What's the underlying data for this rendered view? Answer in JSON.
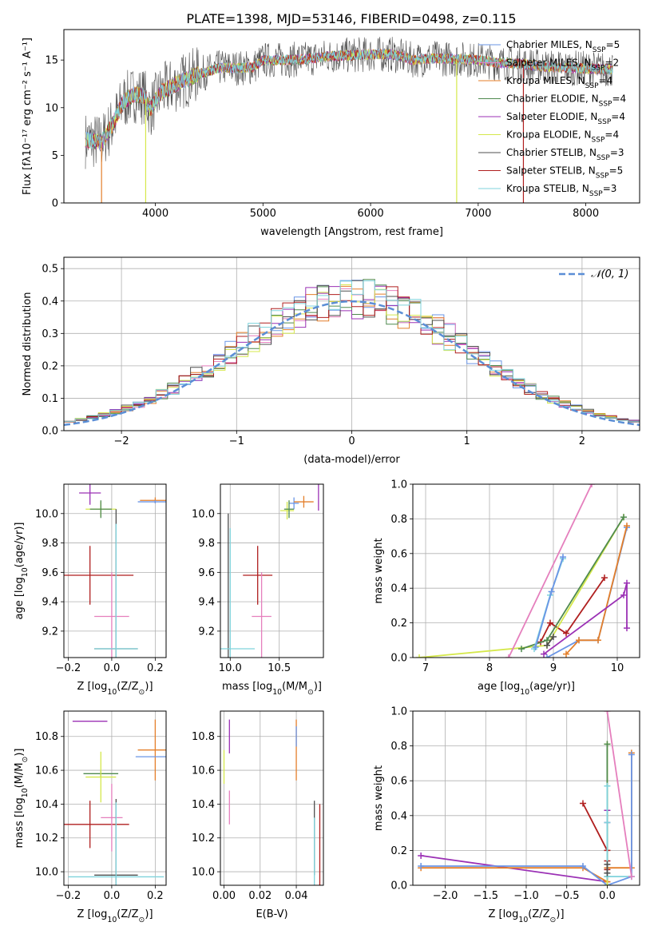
{
  "page_title": "PLATE=1398, MJD=53146, FIBERID=0498, z=0.115",
  "chart_data": [
    {
      "id": "spectrum",
      "type": "line",
      "xlabel": "wavelength [Angstrom, rest frame]",
      "ylabel": "Flux [fλ10⁻¹⁷ erg cm⁻² s⁻¹ A⁻¹]",
      "xlim": [
        3150,
        8500
      ],
      "ylim": [
        0,
        18.2
      ],
      "xticks": [
        4000,
        5000,
        6000,
        7000,
        8000
      ],
      "yticks": [
        0,
        5,
        10,
        15
      ],
      "grid": false,
      "legend": "top-right",
      "continuum_shape": {
        "x": [
          3350,
          3500,
          3600,
          3700,
          3800,
          3900,
          3950,
          4050,
          4200,
          4400,
          4600,
          4800,
          4900,
          5000,
          5200,
          5400,
          5600,
          5800,
          6000,
          6200,
          6400,
          6600,
          6800,
          7000,
          7200,
          7400,
          7600,
          7800,
          8000,
          8250
        ],
        "y": [
          6.6,
          6.4,
          8.2,
          10.6,
          11.4,
          11.2,
          9.8,
          11.6,
          12.5,
          13.5,
          14.2,
          14.2,
          14.2,
          15.0,
          15.0,
          15.1,
          15.4,
          15.5,
          15.6,
          15.6,
          15.0,
          15.2,
          15.1,
          15.0,
          14.7,
          14.6,
          14.3,
          14.2,
          14.1,
          14.0
        ]
      },
      "series": [
        {
          "name": "Chabrier MILES, N_SSP=5",
          "name_parts": [
            "Chabrier MILES, N",
            "SSP",
            "=5"
          ],
          "color": "#6a95e6"
        },
        {
          "name": "Salpeter MILES, N_SSP=2",
          "name_parts": [
            "Salpeter MILES, N",
            "SSP",
            "=2"
          ],
          "color": "#e57fbd"
        },
        {
          "name": "Kroupa MILES, N_SSP=4",
          "name_parts": [
            "Kroupa MILES, N",
            "SSP",
            "=4"
          ],
          "color": "#e47f2a"
        },
        {
          "name": "Chabrier ELODIE, N_SSP=4",
          "name_parts": [
            "Chabrier ELODIE, N",
            "SSP",
            "=4"
          ],
          "color": "#4f8a4f"
        },
        {
          "name": "Salpeter ELODIE, N_SSP=4",
          "name_parts": [
            "Salpeter ELODIE, N",
            "SSP",
            "=4"
          ],
          "color": "#9b31b5"
        },
        {
          "name": "Kroupa ELODIE, N_SSP=4",
          "name_parts": [
            "Kroupa ELODIE, N",
            "SSP",
            "=4"
          ],
          "color": "#d5e84b"
        },
        {
          "name": "Chabrier STELIB, N_SSP=3",
          "name_parts": [
            "Chabrier STELIB, N",
            "SSP",
            "=3"
          ],
          "color": "#4f4f4f"
        },
        {
          "name": "Salpeter STELIB, N_SSP=5",
          "name_parts": [
            "Salpeter STELIB, N",
            "SSP",
            "=5"
          ],
          "color": "#b01f1f"
        },
        {
          "name": "Kroupa STELIB, N_SSP=3",
          "name_parts": [
            "Kroupa STELIB, N",
            "SSP",
            "=3"
          ],
          "color": "#7fd3dc"
        }
      ],
      "drops": [
        {
          "x": 3500,
          "color": "#e47f2a"
        },
        {
          "x": 3910,
          "color": "#d5e84b"
        },
        {
          "x": 6800,
          "color": "#d5e84b"
        },
        {
          "x": 7420,
          "color": "#b01f1f"
        }
      ]
    },
    {
      "id": "residuals",
      "type": "step-histogram",
      "xlabel": "(data-model)/error",
      "ylabel": "Normed distribution",
      "xlim": [
        -2.5,
        2.5
      ],
      "ylim": [
        0,
        0.535
      ],
      "xticks": [
        -2,
        -1,
        0,
        1,
        2
      ],
      "yticks": [
        0.0,
        0.1,
        0.2,
        0.3,
        0.4,
        0.5
      ],
      "grid": true,
      "legend": "top-right",
      "gaussian": {
        "label_text": "𝒩(0, 1)",
        "color": "#5b8ed6",
        "mean": 0,
        "sigma": 1
      },
      "bin_width": 0.1
    },
    {
      "id": "age-vs-Z",
      "type": "errorbar",
      "xlabel_parts": [
        "Z [log",
        "10",
        "(Z/Z",
        "⊙",
        ")]"
      ],
      "ylabel_parts": [
        "age  [log",
        "10",
        "(age/yr)]"
      ],
      "xlim": [
        -0.22,
        0.25
      ],
      "ylim": [
        9.02,
        10.2
      ],
      "xticks": [
        -0.2,
        0.0,
        0.2
      ],
      "yticks": [
        9.2,
        9.4,
        9.6,
        9.8,
        10.0
      ],
      "grid": true,
      "points": [
        {
          "color": "#e47f2a",
          "x": 0.2,
          "y": 10.09,
          "xerr": 0.07,
          "yerr": 0.02
        },
        {
          "color": "#6a95e6",
          "x": 0.2,
          "y": 10.08,
          "xerr": 0.08,
          "yerr": 0.01
        },
        {
          "color": "#9b31b5",
          "x": -0.1,
          "y": 10.14,
          "xerr": 0.05,
          "yerr": 0.08
        },
        {
          "color": "#d5e84b",
          "x": -0.05,
          "y": 10.03,
          "xerr": 0.07,
          "yerr": 0.05
        },
        {
          "color": "#4f8a4f",
          "x": -0.05,
          "y": 10.03,
          "xerr": 0.05,
          "yerr": 0.06
        },
        {
          "color": "#4f4f4f",
          "x": 0.02,
          "y": 9.08,
          "xerr": 0.1,
          "yerr": 0.95
        },
        {
          "color": "#b01f1f",
          "x": -0.1,
          "y": 9.58,
          "xerr": 0.2,
          "yerr": 0.2
        },
        {
          "color": "#e57fbd",
          "x": 0.0,
          "y": 9.3,
          "xerr": 0.08,
          "yerr": 0.3
        },
        {
          "color": "#7fd3dc",
          "x": 0.02,
          "y": 9.08,
          "xerr": 0.1,
          "yerr": 0.85
        }
      ]
    },
    {
      "id": "age-vs-mass",
      "type": "errorbar",
      "xlabel_parts": [
        "mass [log",
        "10",
        "(M/M",
        "⊙",
        ")]"
      ],
      "xlim": [
        9.9,
        10.95
      ],
      "ylim": [
        9.02,
        10.2
      ],
      "xticks": [
        10.0,
        10.5
      ],
      "yticks": [
        9.2,
        9.4,
        9.6,
        9.8,
        10.0
      ],
      "grid": true,
      "points": [
        {
          "color": "#9b31b5",
          "x": 10.9,
          "y": 10.14,
          "xerr": 0.0,
          "yerr": 0.12
        },
        {
          "color": "#6a95e6",
          "x": 10.65,
          "y": 10.07,
          "xerr": 0.05,
          "yerr": 0.04
        },
        {
          "color": "#e47f2a",
          "x": 10.75,
          "y": 10.08,
          "xerr": 0.1,
          "yerr": 0.04
        },
        {
          "color": "#d5e84b",
          "x": 10.58,
          "y": 10.02,
          "xerr": 0.07,
          "yerr": 0.06
        },
        {
          "color": "#4f8a4f",
          "x": 10.6,
          "y": 10.03,
          "xerr": 0.05,
          "yerr": 0.06
        },
        {
          "color": "#4f4f4f",
          "x": 9.98,
          "y": 9.08,
          "xerr": 0.0,
          "yerr": 0.92
        },
        {
          "color": "#b01f1f",
          "x": 10.28,
          "y": 9.58,
          "xerr": 0.15,
          "yerr": 0.2
        },
        {
          "color": "#e57fbd",
          "x": 10.32,
          "y": 9.3,
          "xerr": 0.1,
          "yerr": 0.3
        },
        {
          "color": "#7fd3dc",
          "x": 10.0,
          "y": 9.08,
          "xerr": 0.25,
          "yerr": 0.82
        }
      ]
    },
    {
      "id": "weight-vs-age",
      "type": "line",
      "xlabel_parts": [
        "age  [log",
        "10",
        "(age/yr)]"
      ],
      "ylabel": "mass weight",
      "xlim": [
        6.8,
        10.35
      ],
      "ylim": [
        0,
        1.0
      ],
      "xticks": [
        7,
        8,
        9,
        10
      ],
      "yticks": [
        0.0,
        0.2,
        0.4,
        0.6,
        0.8,
        1.0
      ],
      "grid": true,
      "series": [
        {
          "color": "#6a95e6",
          "x": [
            8.9,
            9.4,
            9.7,
            10.15
          ],
          "y": [
            0.0,
            0.1,
            0.1,
            0.75
          ]
        },
        {
          "color": "#e47f2a",
          "x": [
            9.2,
            9.4,
            9.7,
            10.15
          ],
          "y": [
            0.02,
            0.1,
            0.1,
            0.76
          ]
        },
        {
          "color": "#9b31b5",
          "x": [
            8.85,
            10.1,
            10.15,
            10.15
          ],
          "y": [
            0.02,
            0.36,
            0.43,
            0.17
          ]
        },
        {
          "color": "#b01f1f",
          "x": [
            8.8,
            8.95,
            9.2,
            9.8
          ],
          "y": [
            0.09,
            0.2,
            0.14,
            0.46
          ]
        },
        {
          "color": "#d5e84b",
          "x": [
            6.9,
            8.9,
            10.1
          ],
          "y": [
            0.0,
            0.07,
            0.81
          ]
        },
        {
          "color": "#4f8a4f",
          "x": [
            8.5,
            8.9,
            10.1
          ],
          "y": [
            0.05,
            0.1,
            0.81
          ]
        },
        {
          "color": "#7fd3dc",
          "x": [
            8.7,
            8.95,
            9.15
          ],
          "y": [
            0.05,
            0.36,
            0.57
          ]
        },
        {
          "color": "#6a95e6",
          "x": [
            8.72,
            8.97,
            9.15
          ],
          "y": [
            0.06,
            0.38,
            0.58
          ]
        },
        {
          "color": "#e57fbd",
          "x": [
            8.3,
            9.6
          ],
          "y": [
            0.0,
            1.0
          ]
        },
        {
          "color": "#4f4f4f",
          "x": [
            8.9,
            9.0
          ],
          "y": [
            0.07,
            0.12
          ]
        }
      ]
    },
    {
      "id": "mass-vs-Z",
      "type": "errorbar",
      "xlabel_parts": [
        "Z [log",
        "10",
        "(Z/Z",
        "⊙",
        ")]"
      ],
      "ylabel_parts": [
        "mass [log",
        "10",
        "(M/M",
        "⊙",
        ")]"
      ],
      "xlim": [
        -0.22,
        0.25
      ],
      "ylim": [
        9.92,
        10.95
      ],
      "xticks": [
        -0.2,
        0.0,
        0.2
      ],
      "yticks": [
        10.0,
        10.2,
        10.4,
        10.6,
        10.8
      ],
      "grid": true,
      "points": [
        {
          "color": "#9b31b5",
          "x": -0.1,
          "y": 10.89,
          "xerr": 0.08,
          "yerr": 0.0
        },
        {
          "color": "#e47f2a",
          "x": 0.2,
          "y": 10.72,
          "xerr": 0.08,
          "yerr": 0.18
        },
        {
          "color": "#6a95e6",
          "x": 0.2,
          "y": 10.68,
          "xerr": 0.09,
          "yerr": 0.0
        },
        {
          "color": "#4f8a4f",
          "x": -0.05,
          "y": 10.58,
          "xerr": 0.08,
          "yerr": 0.02
        },
        {
          "color": "#d5e84b",
          "x": -0.05,
          "y": 10.56,
          "xerr": 0.07,
          "yerr": 0.15
        },
        {
          "color": "#b01f1f",
          "x": -0.1,
          "y": 10.28,
          "xerr": 0.18,
          "yerr": 0.14
        },
        {
          "color": "#e57fbd",
          "x": 0.0,
          "y": 10.32,
          "xerr": 0.05,
          "yerr": 0.2
        },
        {
          "color": "#4f4f4f",
          "x": 0.02,
          "y": 9.98,
          "xerr": 0.1,
          "yerr": 0.45
        },
        {
          "color": "#7fd3dc",
          "x": 0.02,
          "y": 9.97,
          "xerr": 0.22,
          "yerr": 0.44
        }
      ]
    },
    {
      "id": "mass-vs-EBV",
      "type": "errorbar",
      "xlabel": "E(B-V)",
      "xlim": [
        -0.002,
        0.055
      ],
      "ylim": [
        9.92,
        10.95
      ],
      "xticks": [
        0.0,
        0.02,
        0.04
      ],
      "yticks": [
        10.0,
        10.2,
        10.4,
        10.6,
        10.8
      ],
      "grid": true,
      "points": [
        {
          "color": "#d5e84b",
          "x": 0.0,
          "y": 10.62,
          "xerr": 0.0,
          "yerr": 0.1
        },
        {
          "color": "#e57fbd",
          "x": 0.003,
          "y": 10.38,
          "xerr": 0.0,
          "yerr": 0.1
        },
        {
          "color": "#9b31b5",
          "x": 0.003,
          "y": 10.8,
          "xerr": 0.0,
          "yerr": 0.1
        },
        {
          "color": "#e47f2a",
          "x": 0.04,
          "y": 10.72,
          "xerr": 0.0,
          "yerr": 0.18
        },
        {
          "color": "#6a95e6",
          "x": 0.04,
          "y": 10.8,
          "xerr": 0.0,
          "yerr": 0.06
        },
        {
          "color": "#4f4f4f",
          "x": 0.05,
          "y": 10.2,
          "xerr": 0.0,
          "yerr": 0.22
        },
        {
          "color": "#7fd3dc",
          "x": 0.05,
          "y": 10.1,
          "xerr": 0.0,
          "yerr": 0.22
        },
        {
          "color": "#b01f1f",
          "x": 0.053,
          "y": 10.12,
          "xerr": 0.0,
          "yerr": 0.28
        }
      ]
    },
    {
      "id": "weight-vs-Z",
      "type": "line",
      "xlabel_parts": [
        "Z [log",
        "10",
        "(Z/Z",
        "⊙",
        ")]"
      ],
      "ylabel": "mass weight",
      "xlim": [
        -2.4,
        0.4
      ],
      "ylim": [
        0,
        1.0
      ],
      "xticks": [
        -2.0,
        -1.5,
        -1.0,
        -0.5,
        0.0
      ],
      "yticks": [
        0.0,
        0.2,
        0.4,
        0.6,
        0.8,
        1.0
      ],
      "grid": true,
      "series": [
        {
          "color": "#9b31b5",
          "x": [
            -2.3,
            0.0,
            0.0,
            0.0
          ],
          "y": [
            0.17,
            0.02,
            0.43,
            0.36
          ]
        },
        {
          "color": "#e47f2a",
          "x": [
            -2.3,
            -0.3,
            0.0,
            0.0,
            0.3,
            0.3
          ],
          "y": [
            0.1,
            0.1,
            0.02,
            0.1,
            0.1,
            0.76
          ]
        },
        {
          "color": "#6a95e6",
          "x": [
            -2.3,
            -0.3,
            0.0,
            0.3,
            0.3
          ],
          "y": [
            0.11,
            0.11,
            0.0,
            0.05,
            0.75
          ]
        },
        {
          "color": "#b01f1f",
          "x": [
            -0.3,
            0.0,
            0.0,
            0.0
          ],
          "y": [
            0.47,
            0.2,
            0.14,
            0.09
          ]
        },
        {
          "color": "#d5e84b",
          "x": [
            0.0,
            0.0,
            0.0
          ],
          "y": [
            0.81,
            0.07,
            0.0
          ]
        },
        {
          "color": "#4f8a4f",
          "x": [
            0.0,
            0.0
          ],
          "y": [
            0.81,
            0.05
          ]
        },
        {
          "color": "#7fd3dc",
          "x": [
            0.0,
            0.0,
            0.0,
            0.3
          ],
          "y": [
            0.57,
            0.36,
            0.05,
            0.05
          ]
        },
        {
          "color": "#e57fbd",
          "x": [
            0.0,
            0.3
          ],
          "y": [
            1.0,
            0.05
          ]
        },
        {
          "color": "#4f4f4f",
          "x": [
            0.0,
            0.0
          ],
          "y": [
            0.07,
            0.12
          ]
        }
      ]
    }
  ]
}
